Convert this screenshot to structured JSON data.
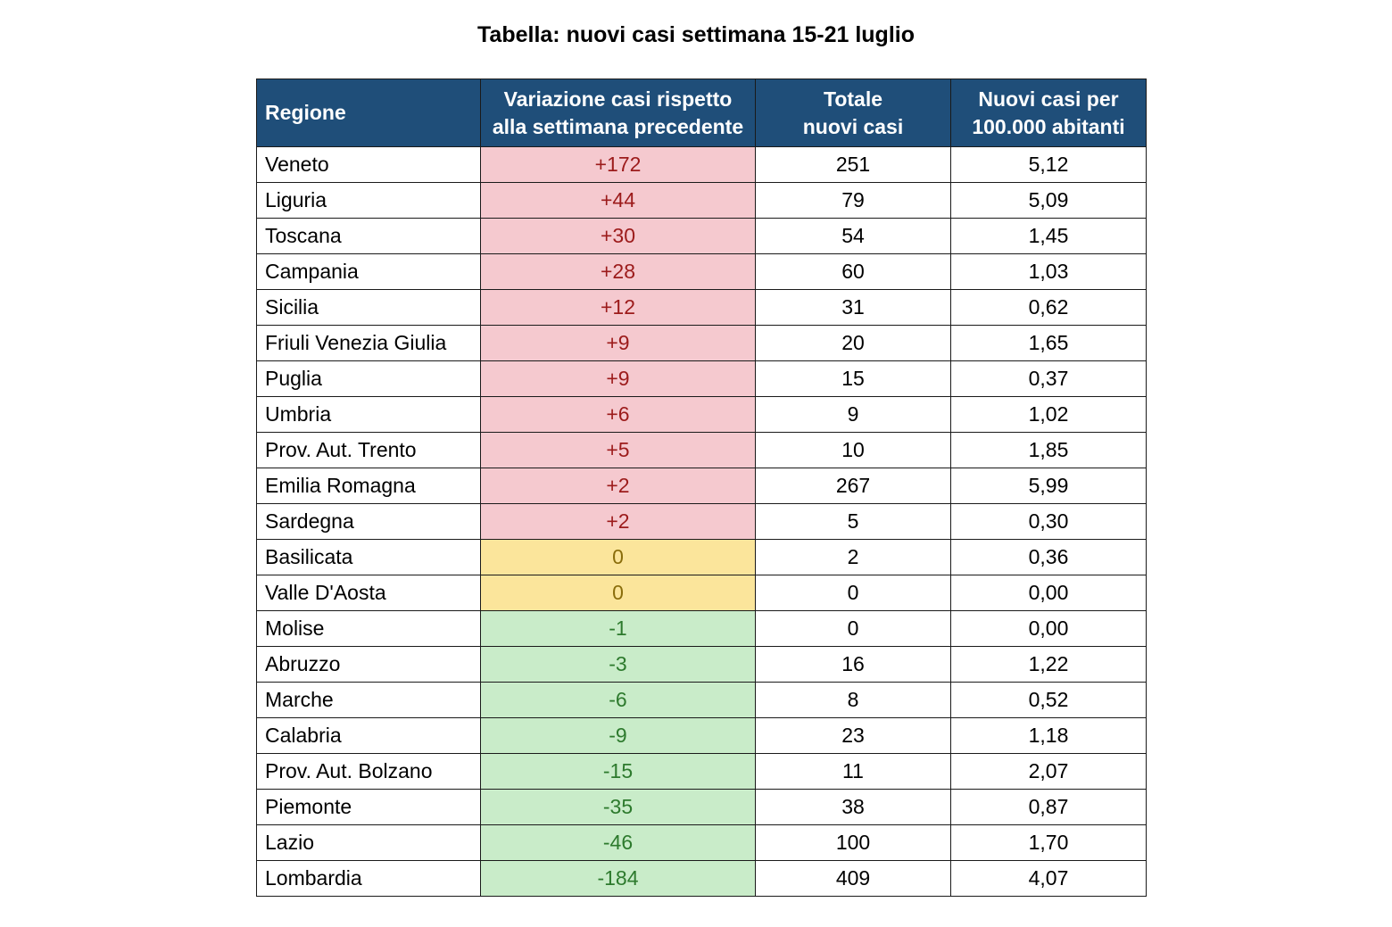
{
  "title": "Tabella: nuovi casi settimana 15-21 luglio",
  "colors": {
    "header_bg": "#1f4e79",
    "header_text": "#ffffff",
    "increase_bg": "#f5c9cf",
    "increase_text": "#9c1b1b",
    "zero_bg": "#fbe59b",
    "zero_text": "#8a6d0b",
    "decrease_bg": "#c9ecc9",
    "decrease_text": "#2d7a2d"
  },
  "chart_data": {
    "type": "table",
    "title": "Tabella: nuovi casi settimana 15-21 luglio",
    "columns": [
      {
        "line1": "Regione",
        "line2": ""
      },
      {
        "line1": "Variazione casi rispetto",
        "line2": "alla settimana precedente"
      },
      {
        "line1": "Totale",
        "line2": "nuovi casi"
      },
      {
        "line1": "Nuovi casi per",
        "line2": "100.000 abitanti"
      }
    ],
    "rows": [
      {
        "regione": "Veneto",
        "variazione": "+172",
        "totale": "251",
        "per100k": "5,12",
        "trend": "pos"
      },
      {
        "regione": "Liguria",
        "variazione": "+44",
        "totale": "79",
        "per100k": "5,09",
        "trend": "pos"
      },
      {
        "regione": "Toscana",
        "variazione": "+30",
        "totale": "54",
        "per100k": "1,45",
        "trend": "pos"
      },
      {
        "regione": "Campania",
        "variazione": "+28",
        "totale": "60",
        "per100k": "1,03",
        "trend": "pos"
      },
      {
        "regione": "Sicilia",
        "variazione": "+12",
        "totale": "31",
        "per100k": "0,62",
        "trend": "pos"
      },
      {
        "regione": "Friuli Venezia Giulia",
        "variazione": "+9",
        "totale": "20",
        "per100k": "1,65",
        "trend": "pos"
      },
      {
        "regione": "Puglia",
        "variazione": "+9",
        "totale": "15",
        "per100k": "0,37",
        "trend": "pos"
      },
      {
        "regione": "Umbria",
        "variazione": "+6",
        "totale": "9",
        "per100k": "1,02",
        "trend": "pos"
      },
      {
        "regione": "Prov. Aut. Trento",
        "variazione": "+5",
        "totale": "10",
        "per100k": "1,85",
        "trend": "pos"
      },
      {
        "regione": "Emilia Romagna",
        "variazione": "+2",
        "totale": "267",
        "per100k": "5,99",
        "trend": "pos"
      },
      {
        "regione": "Sardegna",
        "variazione": "+2",
        "totale": "5",
        "per100k": "0,30",
        "trend": "pos"
      },
      {
        "regione": "Basilicata",
        "variazione": "0",
        "totale": "2",
        "per100k": "0,36",
        "trend": "zero"
      },
      {
        "regione": "Valle D'Aosta",
        "variazione": "0",
        "totale": "0",
        "per100k": "0,00",
        "trend": "zero"
      },
      {
        "regione": "Molise",
        "variazione": "-1",
        "totale": "0",
        "per100k": "0,00",
        "trend": "neg"
      },
      {
        "regione": "Abruzzo",
        "variazione": "-3",
        "totale": "16",
        "per100k": "1,22",
        "trend": "neg"
      },
      {
        "regione": "Marche",
        "variazione": "-6",
        "totale": "8",
        "per100k": "0,52",
        "trend": "neg"
      },
      {
        "regione": "Calabria",
        "variazione": "-9",
        "totale": "23",
        "per100k": "1,18",
        "trend": "neg"
      },
      {
        "regione": "Prov. Aut. Bolzano",
        "variazione": "-15",
        "totale": "11",
        "per100k": "2,07",
        "trend": "neg"
      },
      {
        "regione": "Piemonte",
        "variazione": "-35",
        "totale": "38",
        "per100k": "0,87",
        "trend": "neg"
      },
      {
        "regione": "Lazio",
        "variazione": "-46",
        "totale": "100",
        "per100k": "1,70",
        "trend": "neg"
      },
      {
        "regione": "Lombardia",
        "variazione": "-184",
        "totale": "409",
        "per100k": "4,07",
        "trend": "neg"
      }
    ]
  }
}
